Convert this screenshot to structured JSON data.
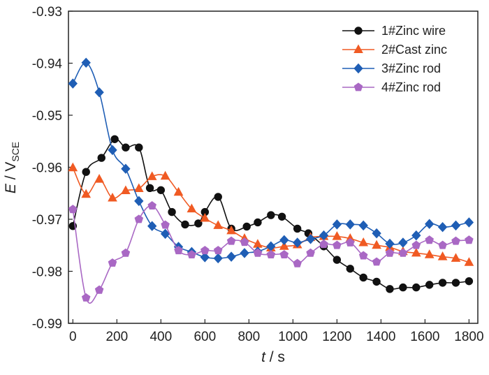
{
  "chart_data": {
    "type": "line",
    "xlabel_italic": "t",
    "xlabel_rest": " / s",
    "ylabel_italic": "E",
    "ylabel_rest": " / V",
    "ylabel_sub": "SCE",
    "xlim": [
      -20,
      1840
    ],
    "ylim": [
      -0.99,
      -0.93
    ],
    "xticks": [
      0,
      200,
      400,
      600,
      800,
      1000,
      1200,
      1400,
      1600,
      1800
    ],
    "xtick_labels": [
      "0",
      "200",
      "400",
      "600",
      "800",
      "1000",
      "1200",
      "1400",
      "1600",
      "1800"
    ],
    "yticks": [
      -0.93,
      -0.94,
      -0.95,
      -0.96,
      -0.97,
      -0.98,
      -0.99
    ],
    "ytick_labels": [
      "-0.93",
      "-0.94",
      "-0.95",
      "-0.96",
      "-0.97",
      "-0.98",
      "-0.99"
    ],
    "legend_position": "top-right",
    "series": [
      {
        "name": "1#Zinc wire",
        "color": "#111111",
        "marker": "circle",
        "x": [
          0,
          60,
          130,
          190,
          240,
          300,
          350,
          400,
          450,
          510,
          570,
          600,
          660,
          720,
          790,
          840,
          900,
          950,
          1020,
          1070,
          1140,
          1200,
          1260,
          1320,
          1380,
          1440,
          1500,
          1560,
          1620,
          1680,
          1740,
          1800
        ],
        "y": [
          -0.9713,
          -0.9609,
          -0.9582,
          -0.9546,
          -0.9562,
          -0.9562,
          -0.964,
          -0.9644,
          -0.9686,
          -0.971,
          -0.9708,
          -0.9686,
          -0.9657,
          -0.9718,
          -0.9714,
          -0.9706,
          -0.9692,
          -0.9695,
          -0.9718,
          -0.9727,
          -0.9752,
          -0.9778,
          -0.9795,
          -0.9812,
          -0.982,
          -0.9834,
          -0.9831,
          -0.9831,
          -0.9826,
          -0.9822,
          -0.9822,
          -0.9819
        ]
      },
      {
        "name": "2#Cast zinc",
        "color": "#f05a23",
        "marker": "triangle",
        "x": [
          0,
          60,
          120,
          180,
          240,
          300,
          360,
          420,
          480,
          540,
          600,
          660,
          720,
          780,
          840,
          900,
          960,
          1020,
          1080,
          1140,
          1200,
          1260,
          1320,
          1380,
          1440,
          1500,
          1560,
          1620,
          1680,
          1740,
          1800
        ],
        "y": [
          -0.9601,
          -0.9652,
          -0.9623,
          -0.9659,
          -0.9645,
          -0.9641,
          -0.9618,
          -0.9617,
          -0.9648,
          -0.968,
          -0.9698,
          -0.9712,
          -0.9722,
          -0.9737,
          -0.9748,
          -0.9755,
          -0.9752,
          -0.9749,
          -0.9735,
          -0.9733,
          -0.9733,
          -0.9737,
          -0.9745,
          -0.975,
          -0.9754,
          -0.9762,
          -0.9765,
          -0.9768,
          -0.9772,
          -0.9775,
          -0.9783
        ]
      },
      {
        "name": "3#Zinc rod",
        "color": "#1f5eb5",
        "marker": "diamond",
        "x": [
          0,
          60,
          120,
          180,
          240,
          300,
          360,
          420,
          480,
          540,
          600,
          660,
          720,
          780,
          840,
          900,
          960,
          1020,
          1080,
          1140,
          1200,
          1260,
          1320,
          1380,
          1440,
          1500,
          1560,
          1620,
          1680,
          1740,
          1800
        ],
        "y": [
          -0.9439,
          -0.9399,
          -0.9456,
          -0.9567,
          -0.9603,
          -0.9665,
          -0.9713,
          -0.9728,
          -0.9753,
          -0.9763,
          -0.9773,
          -0.9775,
          -0.9772,
          -0.9765,
          -0.9762,
          -0.9752,
          -0.974,
          -0.9745,
          -0.9738,
          -0.9731,
          -0.971,
          -0.971,
          -0.9712,
          -0.9727,
          -0.9747,
          -0.9745,
          -0.9731,
          -0.9709,
          -0.9715,
          -0.9712,
          -0.9706
        ]
      },
      {
        "name": "4#Zinc rod",
        "color": "#a968c4",
        "marker": "pentagon",
        "x": [
          0,
          60,
          120,
          180,
          240,
          300,
          360,
          420,
          480,
          540,
          600,
          660,
          720,
          780,
          840,
          900,
          960,
          1020,
          1080,
          1140,
          1200,
          1260,
          1320,
          1380,
          1440,
          1500,
          1560,
          1620,
          1680,
          1740,
          1800
        ],
        "y": [
          -0.9681,
          -0.9851,
          -0.9836,
          -0.9784,
          -0.9765,
          -0.97,
          -0.9674,
          -0.9711,
          -0.976,
          -0.9768,
          -0.976,
          -0.976,
          -0.9742,
          -0.9744,
          -0.9765,
          -0.9768,
          -0.9768,
          -0.9785,
          -0.9765,
          -0.9748,
          -0.975,
          -0.9745,
          -0.977,
          -0.9782,
          -0.9765,
          -0.9765,
          -0.975,
          -0.974,
          -0.975,
          -0.9742,
          -0.974
        ]
      }
    ]
  }
}
